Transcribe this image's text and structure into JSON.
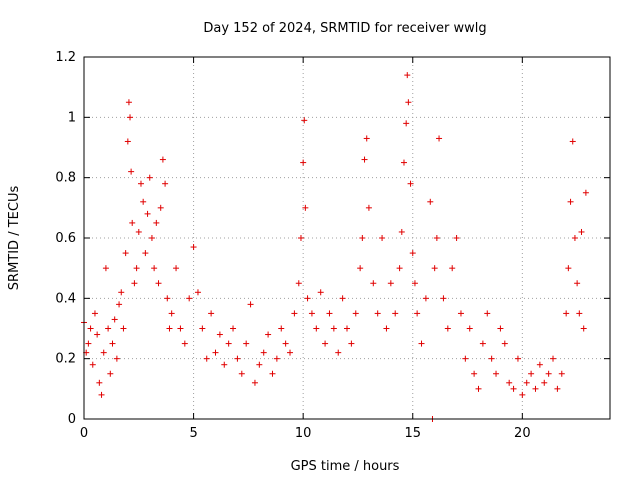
{
  "chart_data": {
    "type": "scatter",
    "title": "Day 152 of 2024, SRMTID for receiver wwlg",
    "xlabel": "GPS time / hours",
    "ylabel": "SRMTID / TECUs",
    "xlim": [
      0,
      24
    ],
    "ylim": [
      0,
      1.2
    ],
    "xticks": [
      0,
      5,
      10,
      15,
      20
    ],
    "xtick_labels": [
      "0",
      "5",
      "10",
      "15",
      "20"
    ],
    "yticks": [
      0,
      0.2,
      0.4,
      0.6,
      0.8,
      1.0,
      1.2
    ],
    "ytick_labels": [
      "0",
      "0.2",
      "0.4",
      "0.6",
      "0.8",
      "1",
      "1.2"
    ],
    "grid": true,
    "marker": "+",
    "color": "#e00000",
    "series": [
      {
        "name": "wwlg",
        "x": [
          0.0,
          0.1,
          0.2,
          0.3,
          0.4,
          0.5,
          0.6,
          0.7,
          0.8,
          0.9,
          1.0,
          1.1,
          1.2,
          1.3,
          1.4,
          1.5,
          1.6,
          1.7,
          1.8,
          1.9,
          2.0,
          2.05,
          2.1,
          2.15,
          2.2,
          2.3,
          2.4,
          2.5,
          2.6,
          2.7,
          2.8,
          2.9,
          3.0,
          3.1,
          3.2,
          3.3,
          3.4,
          3.5,
          3.6,
          3.7,
          3.8,
          3.9,
          4.0,
          4.2,
          4.4,
          4.6,
          4.8,
          5.0,
          5.2,
          5.4,
          5.6,
          5.8,
          6.0,
          6.2,
          6.4,
          6.6,
          6.8,
          7.0,
          7.2,
          7.4,
          7.6,
          7.8,
          8.0,
          8.2,
          8.4,
          8.6,
          8.8,
          9.0,
          9.2,
          9.4,
          9.6,
          9.8,
          9.9,
          10.0,
          10.05,
          10.1,
          10.2,
          10.4,
          10.6,
          10.8,
          11.0,
          11.2,
          11.4,
          11.6,
          11.8,
          12.0,
          12.2,
          12.4,
          12.6,
          12.7,
          12.8,
          12.9,
          13.0,
          13.2,
          13.4,
          13.6,
          13.8,
          14.0,
          14.2,
          14.4,
          14.5,
          14.6,
          14.7,
          14.75,
          14.8,
          14.9,
          15.0,
          15.1,
          15.2,
          15.4,
          15.6,
          15.8,
          15.9,
          16.0,
          16.1,
          16.2,
          16.4,
          16.6,
          16.8,
          17.0,
          17.2,
          17.4,
          17.6,
          17.8,
          18.0,
          18.2,
          18.4,
          18.6,
          18.8,
          19.0,
          19.2,
          19.4,
          19.6,
          19.8,
          20.0,
          20.2,
          20.4,
          20.6,
          20.8,
          21.0,
          21.2,
          21.4,
          21.6,
          21.8,
          22.0,
          22.1,
          22.2,
          22.3,
          22.4,
          22.5,
          22.6,
          22.7,
          22.8,
          22.9
        ],
        "y": [
          0.32,
          0.22,
          0.25,
          0.3,
          0.18,
          0.35,
          0.28,
          0.12,
          0.08,
          0.22,
          0.5,
          0.3,
          0.15,
          0.25,
          0.33,
          0.2,
          0.38,
          0.42,
          0.3,
          0.55,
          0.92,
          1.05,
          1.0,
          0.82,
          0.65,
          0.45,
          0.5,
          0.62,
          0.78,
          0.72,
          0.55,
          0.68,
          0.8,
          0.6,
          0.5,
          0.65,
          0.45,
          0.7,
          0.86,
          0.78,
          0.4,
          0.3,
          0.35,
          0.5,
          0.3,
          0.25,
          0.4,
          0.57,
          0.42,
          0.3,
          0.2,
          0.35,
          0.22,
          0.28,
          0.18,
          0.25,
          0.3,
          0.2,
          0.15,
          0.25,
          0.38,
          0.12,
          0.18,
          0.22,
          0.28,
          0.15,
          0.2,
          0.3,
          0.25,
          0.22,
          0.35,
          0.45,
          0.6,
          0.85,
          0.99,
          0.7,
          0.4,
          0.35,
          0.3,
          0.42,
          0.25,
          0.35,
          0.3,
          0.22,
          0.4,
          0.3,
          0.25,
          0.35,
          0.5,
          0.6,
          0.86,
          0.93,
          0.7,
          0.45,
          0.35,
          0.6,
          0.3,
          0.45,
          0.35,
          0.5,
          0.62,
          0.85,
          0.98,
          1.14,
          1.05,
          0.78,
          0.55,
          0.45,
          0.35,
          0.25,
          0.4,
          0.72,
          0.0,
          0.5,
          0.6,
          0.93,
          0.4,
          0.3,
          0.5,
          0.6,
          0.35,
          0.2,
          0.3,
          0.15,
          0.1,
          0.25,
          0.35,
          0.2,
          0.15,
          0.3,
          0.25,
          0.12,
          0.1,
          0.2,
          0.08,
          0.12,
          0.15,
          0.1,
          0.18,
          0.12,
          0.15,
          0.2,
          0.1,
          0.15,
          0.35,
          0.5,
          0.72,
          0.92,
          0.6,
          0.45,
          0.35,
          0.62,
          0.3,
          0.75
        ]
      }
    ]
  }
}
